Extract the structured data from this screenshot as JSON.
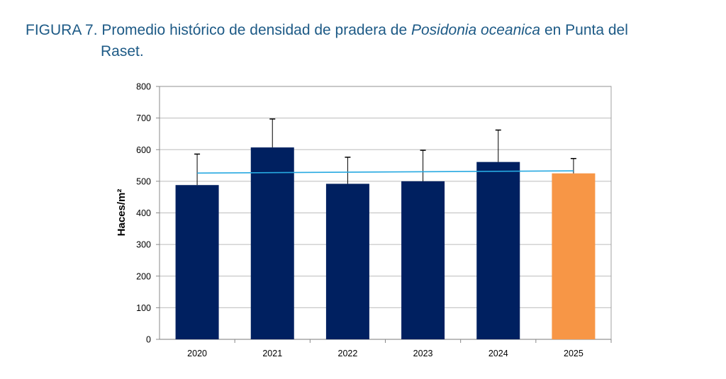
{
  "title": {
    "prefix": "FIGURA 7. Promedio histórico de densidad de pradera de ",
    "species": "Posidonia oceanica",
    "suffix": " en Punta del",
    "line2": "Raset."
  },
  "chart_data": {
    "type": "bar",
    "title": "FIGURA 7. Promedio histórico de densidad de pradera de Posidonia oceanica en Punta del Raset.",
    "xlabel": "",
    "ylabel": "Haces/m²",
    "ylim": [
      0,
      800
    ],
    "yticks": [
      0,
      100,
      200,
      300,
      400,
      500,
      600,
      700,
      800
    ],
    "grid": true,
    "categories": [
      "2020",
      "2021",
      "2022",
      "2023",
      "2024",
      "2025"
    ],
    "values": [
      488,
      607,
      492,
      500,
      561,
      525
    ],
    "error_upper": [
      586,
      697,
      576,
      598,
      662,
      572
    ],
    "colors": [
      "#002060",
      "#002060",
      "#002060",
      "#002060",
      "#002060",
      "#f79646"
    ],
    "trendline": {
      "type": "linear",
      "start": 526,
      "end": 533,
      "color": "#27a9e1"
    }
  }
}
